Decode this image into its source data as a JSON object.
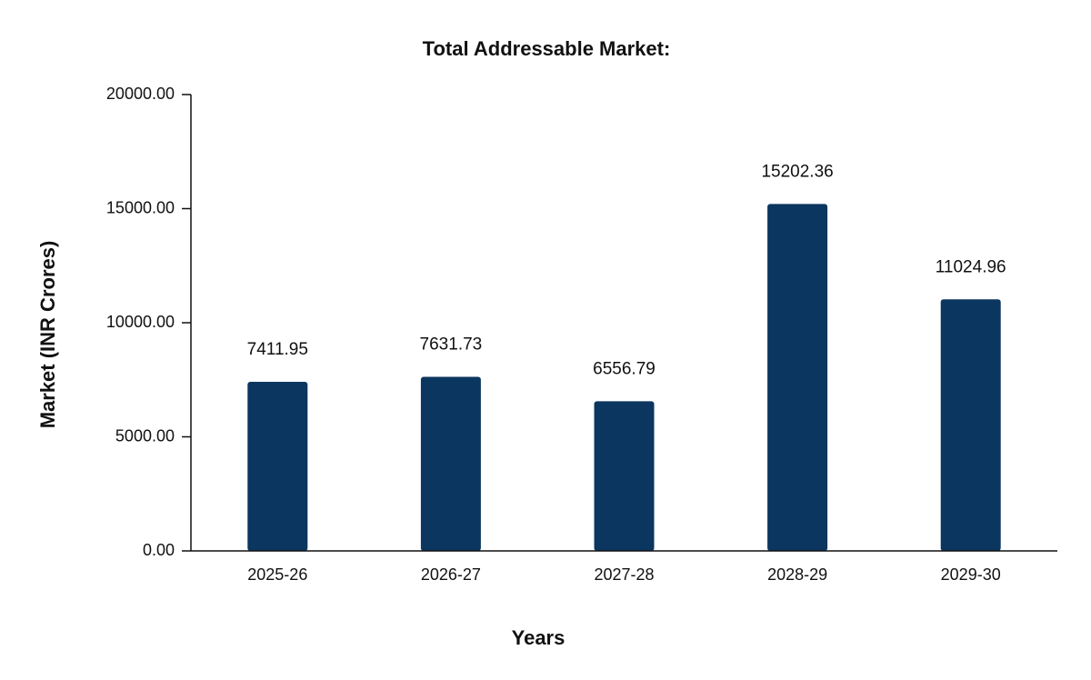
{
  "chart_data": {
    "type": "bar",
    "title": "Total Addressable Market:",
    "xlabel": "Years",
    "ylabel": "Market (INR Crores)",
    "categories": [
      "2025-26",
      "2026-27",
      "2027-28",
      "2028-29",
      "2029-30"
    ],
    "values": [
      7411.95,
      7631.73,
      6556.79,
      15202.36,
      11024.96
    ],
    "data_labels": [
      "7411.95",
      "7631.73",
      "6556.79",
      "15202.36",
      "11024.96"
    ],
    "ylim": [
      0,
      20000
    ],
    "yticks": [
      0,
      5000,
      10000,
      15000,
      20000
    ],
    "ytick_labels": [
      "0.00",
      "5000.00",
      "10000.00",
      "15000.00",
      "20000.00"
    ],
    "grid": false,
    "legend": "none",
    "colors": {
      "bar": "#0b365f",
      "axis": "#111111"
    }
  }
}
